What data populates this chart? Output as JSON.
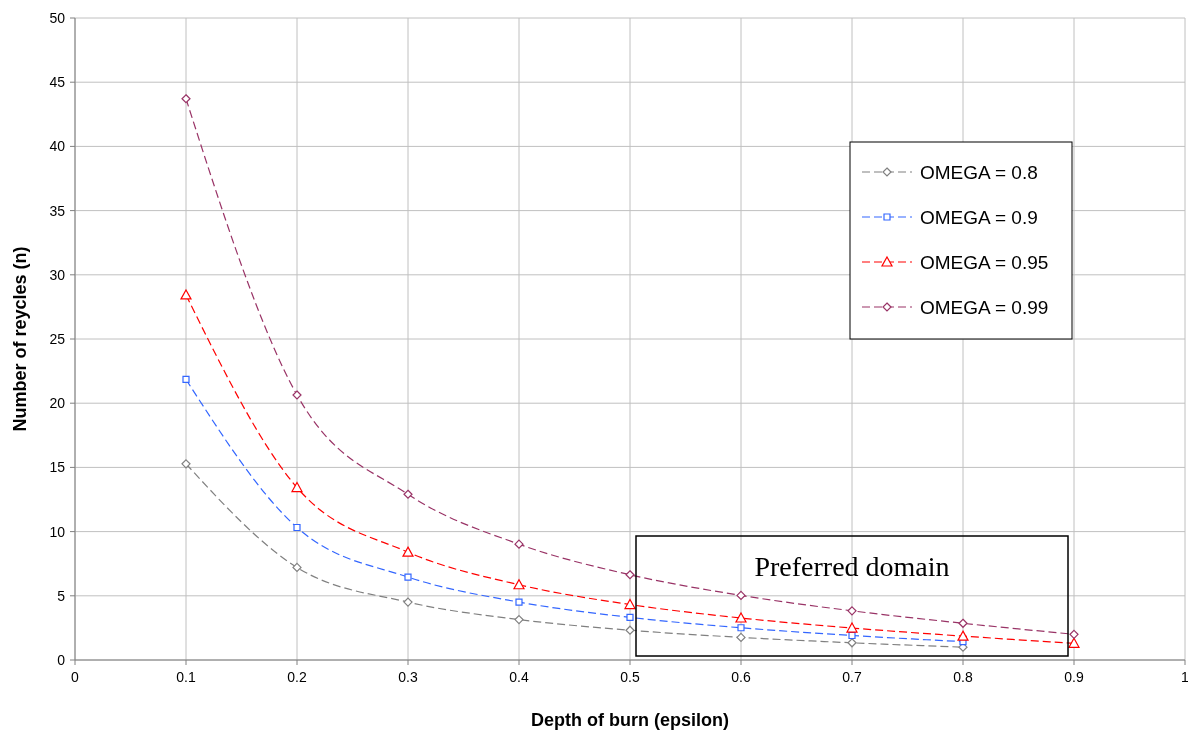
{
  "chart_data": {
    "type": "line",
    "xlabel": "Depth of burn (epsilon)",
    "ylabel": "Number of reycles (n)",
    "x": [
      0.1,
      0.2,
      0.3,
      0.4,
      0.5,
      0.6,
      0.7,
      0.8,
      0.9
    ],
    "series": [
      {
        "name": "OMEGA = 0.8",
        "color": "#808080",
        "marker": "diamond",
        "values": [
          15.28,
          7.21,
          4.51,
          3.15,
          2.32,
          1.76,
          1.34,
          1.0,
          null
        ]
      },
      {
        "name": "OMEGA = 0.9",
        "color": "#3366ff",
        "marker": "square",
        "values": [
          21.85,
          10.32,
          6.46,
          4.51,
          3.32,
          2.51,
          1.91,
          1.43,
          null
        ]
      },
      {
        "name": "OMEGA = 0.95",
        "color": "#ff0000",
        "marker": "triangle",
        "values": [
          28.43,
          13.43,
          8.4,
          5.86,
          4.32,
          3.27,
          2.49,
          1.86,
          1.3
        ]
      },
      {
        "name": "OMEGA = 0.99",
        "color": "#993366",
        "marker": "diamond",
        "values": [
          43.71,
          20.64,
          12.91,
          9.02,
          6.64,
          5.03,
          3.83,
          2.86,
          2.0
        ]
      }
    ],
    "line_style": "dashed",
    "xlim": [
      0,
      1
    ],
    "xticks": [
      0,
      0.1,
      0.2,
      0.3,
      0.4,
      0.5,
      0.6,
      0.7,
      0.8,
      0.9,
      1
    ],
    "ylim": [
      0,
      50
    ],
    "yticks": [
      0,
      5,
      10,
      15,
      20,
      25,
      30,
      35,
      40,
      45,
      50
    ],
    "grid": true,
    "legend": "top right",
    "annotations": [
      "Preferred domain"
    ]
  }
}
